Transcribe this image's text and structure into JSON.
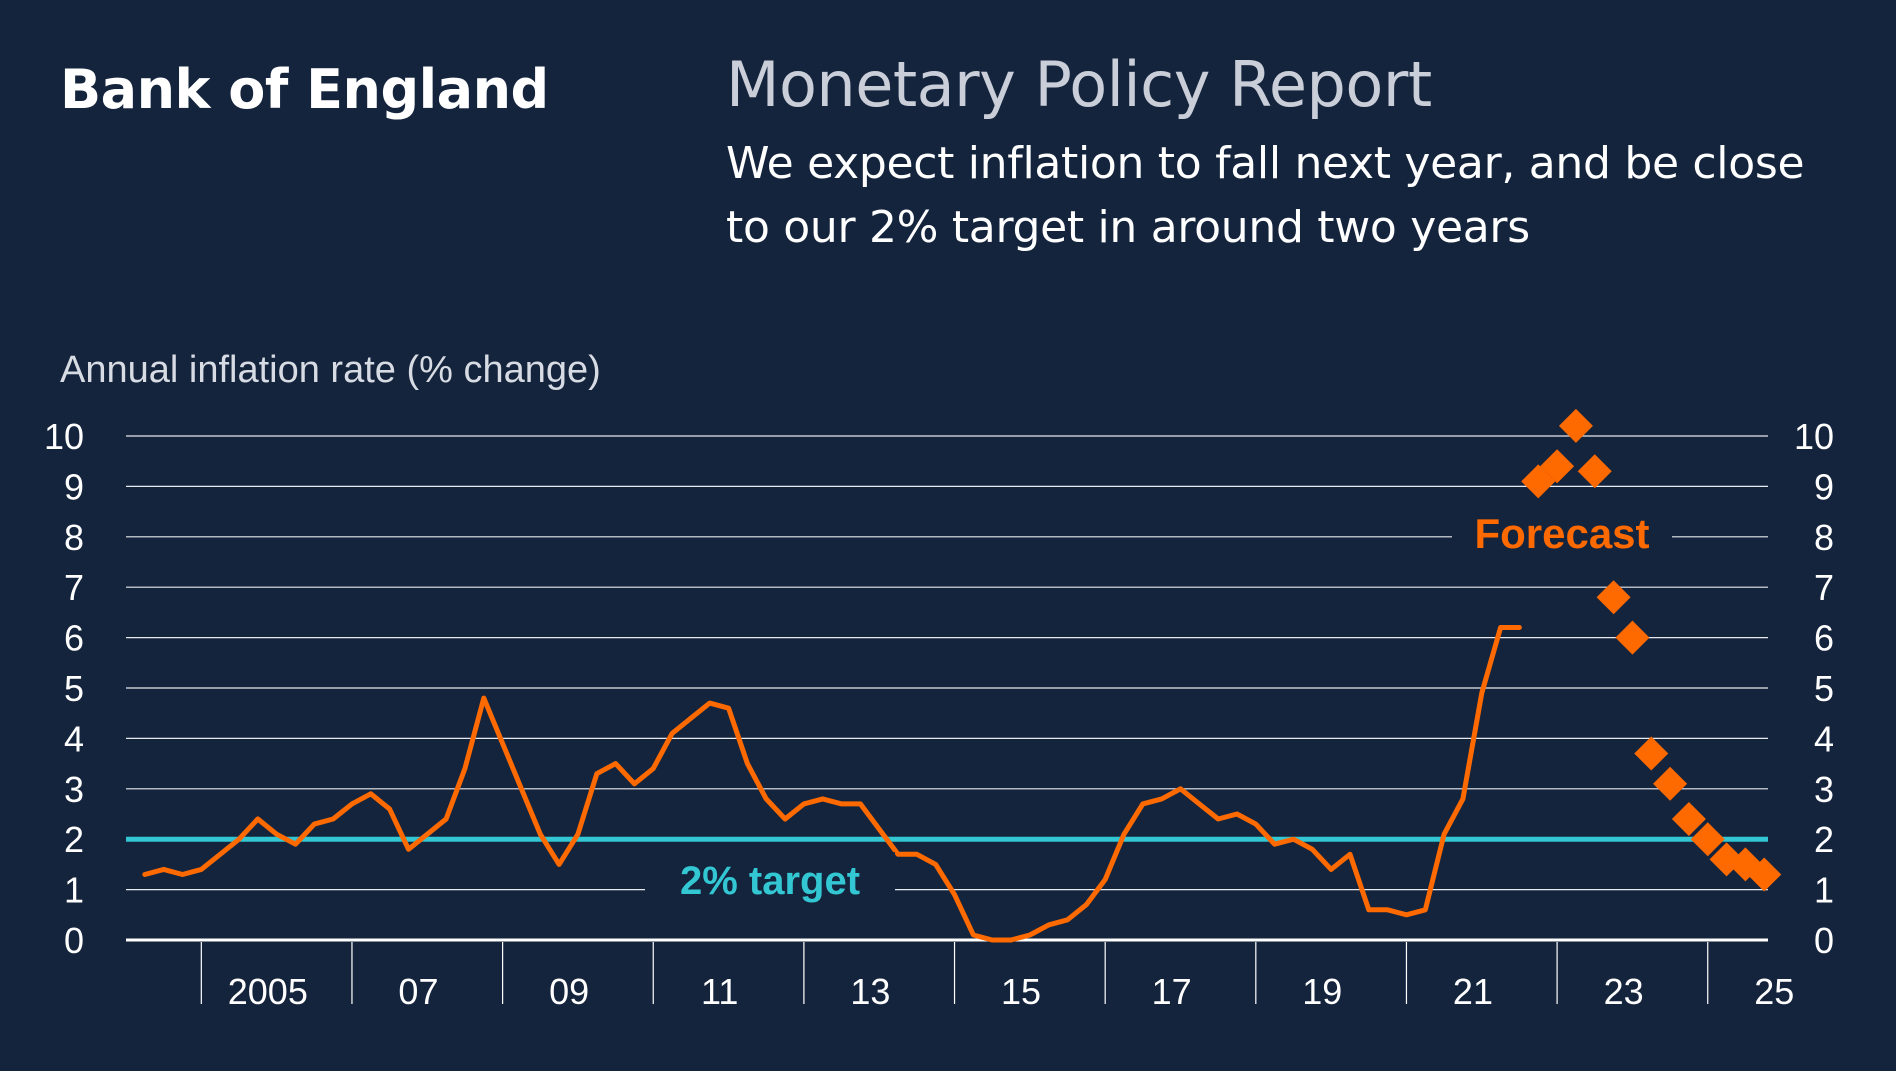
{
  "header": {
    "brand": "Bank of England",
    "report_title": "Monetary Policy Report",
    "subtitle": "We expect inflation to fall next year, and be close to our 2% target in around two years"
  },
  "colors": {
    "background": "#15243d",
    "inflation_line": "#ff6a00",
    "target_line": "#33c7d3",
    "gridline": "#ffffff",
    "text": "#ffffff"
  },
  "chart_data": {
    "type": "line",
    "title": "We expect inflation to fall next year, and be close to our 2% target in around two years",
    "ylabel": "Annual inflation rate (% change)",
    "xlabel": "",
    "ylim": [
      0,
      10
    ],
    "yticks": [
      0,
      1,
      2,
      3,
      4,
      5,
      6,
      7,
      8,
      9,
      10
    ],
    "xlim": [
      2003.5,
      2025.3
    ],
    "xticks": [
      {
        "value": 2004.5,
        "label": ""
      },
      {
        "value": 2006.5,
        "label": ""
      },
      {
        "value": 2008.5,
        "label": ""
      },
      {
        "value": 2010.5,
        "label": ""
      },
      {
        "value": 2012.5,
        "label": ""
      },
      {
        "value": 2014.5,
        "label": ""
      },
      {
        "value": 2016.5,
        "label": ""
      },
      {
        "value": 2018.5,
        "label": ""
      },
      {
        "value": 2020.5,
        "label": ""
      },
      {
        "value": 2022.5,
        "label": ""
      },
      {
        "value": 2024.5,
        "label": ""
      }
    ],
    "xtick_labels": [
      {
        "value": 2005.25,
        "label": "2005"
      },
      {
        "value": 2007.25,
        "label": "07"
      },
      {
        "value": 2009.25,
        "label": "09"
      },
      {
        "value": 2011.25,
        "label": "11"
      },
      {
        "value": 2013.25,
        "label": "13"
      },
      {
        "value": 2015.25,
        "label": "15"
      },
      {
        "value": 2017.25,
        "label": "17"
      },
      {
        "value": 2019.25,
        "label": "19"
      },
      {
        "value": 2021.25,
        "label": "21"
      },
      {
        "value": 2023.25,
        "label": "23"
      },
      {
        "value": 2025.25,
        "label": "25"
      }
    ],
    "grid": true,
    "target": {
      "value": 2,
      "label": "2% target"
    },
    "forecast_label": "Forecast",
    "series": [
      {
        "name": "Annual inflation rate",
        "style": "line",
        "x": [
          2003.75,
          2004.0,
          2004.25,
          2004.5,
          2004.75,
          2005.0,
          2005.25,
          2005.5,
          2005.75,
          2006.0,
          2006.25,
          2006.5,
          2006.75,
          2007.0,
          2007.25,
          2007.5,
          2007.75,
          2008.0,
          2008.25,
          2008.5,
          2008.75,
          2009.0,
          2009.25,
          2009.5,
          2009.75,
          2010.0,
          2010.25,
          2010.5,
          2010.75,
          2011.0,
          2011.25,
          2011.5,
          2011.75,
          2012.0,
          2012.25,
          2012.5,
          2012.75,
          2013.0,
          2013.25,
          2013.5,
          2013.75,
          2014.0,
          2014.25,
          2014.5,
          2014.75,
          2015.0,
          2015.25,
          2015.5,
          2015.75,
          2016.0,
          2016.25,
          2016.5,
          2016.75,
          2017.0,
          2017.25,
          2017.5,
          2017.75,
          2018.0,
          2018.25,
          2018.5,
          2018.75,
          2019.0,
          2019.25,
          2019.5,
          2019.75,
          2020.0,
          2020.25,
          2020.5,
          2020.75,
          2021.0,
          2021.25,
          2021.5,
          2021.75,
          2022.0
        ],
        "values": [
          1.3,
          1.4,
          1.3,
          1.4,
          1.7,
          2.0,
          2.4,
          2.1,
          1.9,
          2.3,
          2.4,
          2.7,
          2.9,
          2.6,
          1.8,
          2.1,
          2.4,
          3.4,
          4.8,
          3.9,
          3.0,
          2.1,
          1.5,
          2.1,
          3.3,
          3.5,
          3.1,
          3.4,
          4.1,
          4.4,
          4.7,
          4.6,
          3.5,
          2.8,
          2.4,
          2.7,
          2.8,
          2.7,
          2.7,
          2.2,
          1.7,
          1.7,
          1.5,
          0.9,
          0.1,
          0.0,
          0.0,
          0.1,
          0.3,
          0.4,
          0.7,
          1.2,
          2.1,
          2.7,
          2.8,
          3.0,
          2.7,
          2.4,
          2.5,
          2.3,
          1.9,
          2.0,
          1.8,
          1.4,
          1.7,
          0.6,
          0.6,
          0.5,
          0.6,
          2.1,
          2.8,
          4.9,
          6.2,
          6.2
        ]
      },
      {
        "name": "Forecast",
        "style": "diamond",
        "x": [
          2022.25,
          2022.5,
          2022.75,
          2023.0,
          2023.25,
          2023.5,
          2023.75,
          2024.0,
          2024.25,
          2024.5,
          2024.75,
          2025.0,
          2025.25
        ],
        "values": [
          9.1,
          9.4,
          10.2,
          9.3,
          6.8,
          6.0,
          3.7,
          3.1,
          2.4,
          2.0,
          1.6,
          1.5,
          1.3
        ]
      }
    ]
  }
}
